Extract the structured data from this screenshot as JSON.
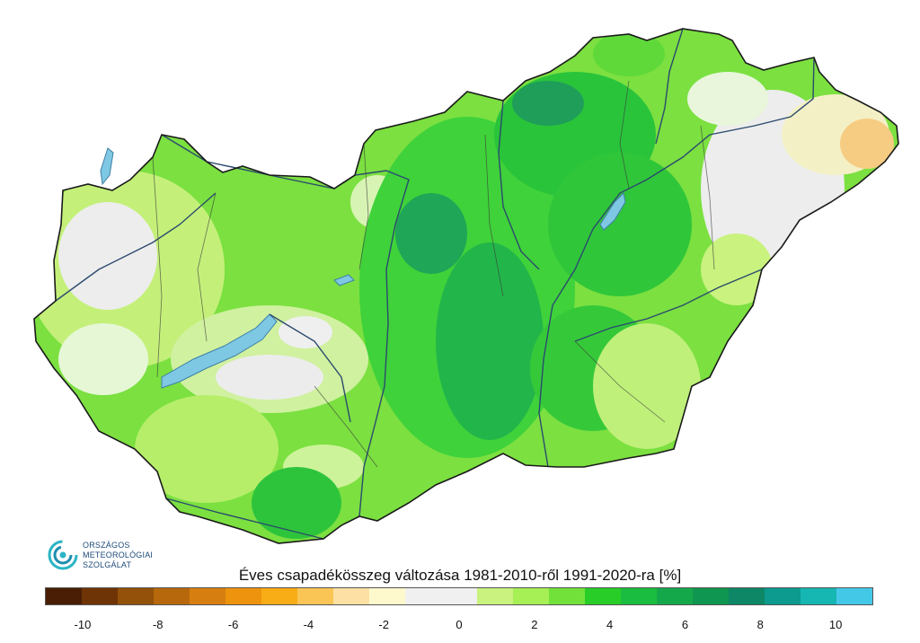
{
  "logo": {
    "line1": "ORSZÁGOS",
    "line2": "METEOROLÓGIAI",
    "line3": "SZOLGÁLAT"
  },
  "title": "Éves csapadékösszeg változása 1981-2010-ről 1991-2020-ra [%]",
  "legend": {
    "colors": [
      "#4a1e04",
      "#6e3406",
      "#93510a",
      "#b7680c",
      "#d67f10",
      "#ee930e",
      "#f8ad16",
      "#fbc556",
      "#fce0a4",
      "#fdf9cc",
      "#f0f0f0",
      "#f0f0f0",
      "#c9f27e",
      "#a6ef55",
      "#72e23a",
      "#28cd28",
      "#1bbd40",
      "#14a84a",
      "#0f9650",
      "#0d8766",
      "#0c9b8e",
      "#16b6b2",
      "#44c8e8"
    ],
    "ticks": [
      "-10",
      "-8",
      "-6",
      "-4",
      "-2",
      "0",
      "2",
      "4",
      "6",
      "8",
      "10"
    ],
    "tick_values": [
      -10,
      -8,
      -6,
      -4,
      -2,
      0,
      2,
      4,
      6,
      8,
      10
    ],
    "range": [
      -11,
      11
    ]
  },
  "map": {
    "region": "Hungary",
    "colors": {
      "border": "#1a1a1a",
      "river": "#2b4a6e",
      "lake": "#7ec8e3",
      "near_zero": "#efefef",
      "light_green": "#b8ee70",
      "mid_green": "#4fdc2e",
      "dark_green": "#1ebd3a",
      "deep_green": "#14a84a",
      "teal": "#2a9a8a",
      "pale_yellow": "#f4f0c6",
      "light_orange": "#f6cc82"
    }
  }
}
